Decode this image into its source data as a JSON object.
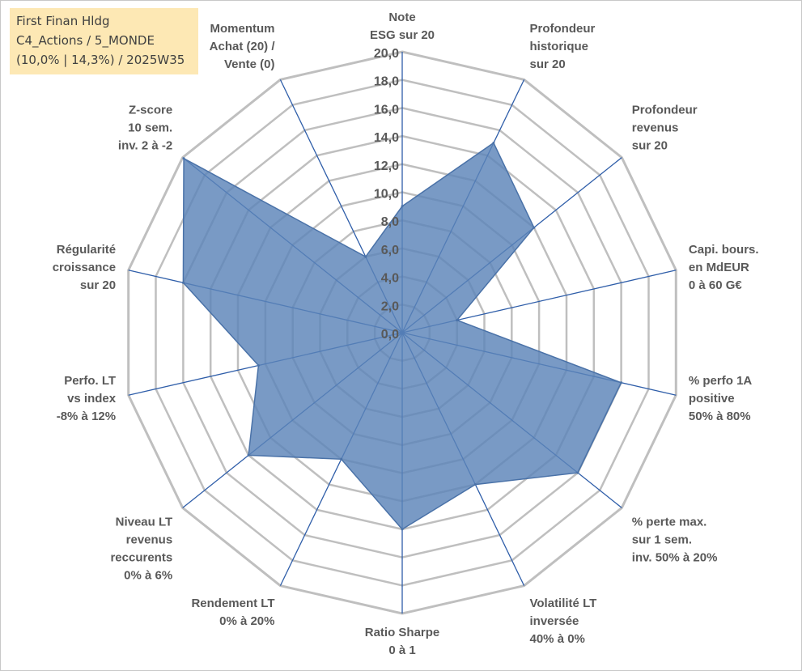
{
  "title_box": {
    "line1": "First Finan Hldg",
    "line2": "C4_Actions / 5_MONDE",
    "line3": "(10,0% | 14,3%) / 2025W35"
  },
  "colors": {
    "series_fill": "#5b84b8",
    "series_stroke": "#4a72a8",
    "spoke": "#2f5ea9",
    "grid": "#bfbfbf",
    "text": "#595959"
  },
  "chart_data": {
    "type": "radar",
    "rmin": 0,
    "rmax": 20,
    "tick_step": 2,
    "tick_labels": [
      "0,0",
      "2,0",
      "4,0",
      "6,0",
      "8,0",
      "10,0",
      "12,0",
      "14,0",
      "16,0",
      "18,0",
      "20,0"
    ],
    "categories": [
      [
        "Note",
        "ESG sur 20"
      ],
      [
        "Profondeur",
        "historique",
        "sur 20"
      ],
      [
        "Profondeur",
        "revenus",
        "sur 20"
      ],
      [
        "Capi. bours.",
        "en MdEUR",
        "0 à 60 G€"
      ],
      [
        "% perfo 1A",
        "positive",
        "50% à 80%"
      ],
      [
        "% perte max.",
        "sur 1 sem.",
        "inv. 50% à 20%"
      ],
      [
        "Volatilité LT",
        "inversée",
        "40% à 0%"
      ],
      [
        "Ratio Sharpe",
        "0 à 1"
      ],
      [
        "Rendement LT",
        "0% à 20%"
      ],
      [
        "Niveau LT",
        "revenus",
        "reccurents",
        "0% à 6%"
      ],
      [
        "Perfo. LT",
        "vs index",
        "-8% à 12%"
      ],
      [
        "Régularité",
        "croissance",
        "sur 20"
      ],
      [
        "Z-score",
        "10 sem.",
        "inv. 2 à -2"
      ],
      [
        "Momentum",
        "Achat (20) /",
        "Vente (0)"
      ]
    ],
    "series": [
      {
        "values": [
          9.0,
          15.0,
          12.0,
          4.0,
          16.0,
          16.0,
          12.0,
          14.0,
          10.0,
          14.0,
          10.5,
          16.0,
          19.9,
          6.0
        ]
      }
    ]
  }
}
